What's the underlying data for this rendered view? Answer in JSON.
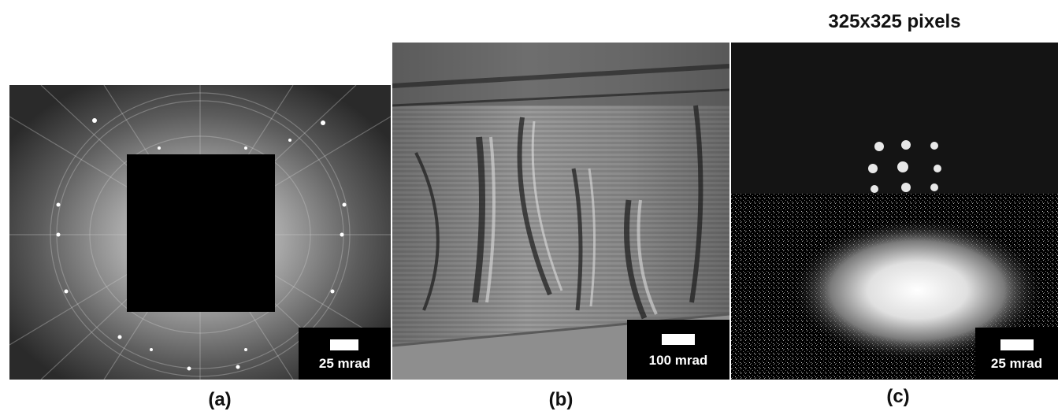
{
  "panels": [
    {
      "caption": "(a)",
      "scale_label": "25 mrad"
    },
    {
      "caption": "(b)",
      "scale_label": "100 mrad"
    },
    {
      "caption": "(c)",
      "scale_label": "25 mrad",
      "title": "325x325 pixels"
    }
  ],
  "colors": {
    "background": "#ffffff",
    "scale_box": "#000000",
    "scale_bar": "#ffffff"
  }
}
